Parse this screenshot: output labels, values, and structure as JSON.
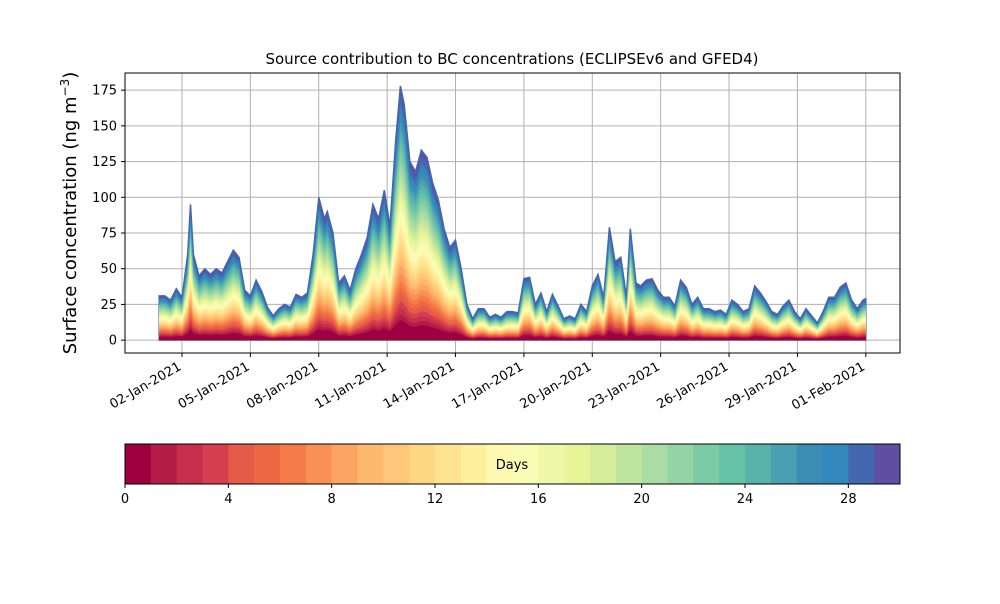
{
  "chart_data": {
    "type": "area",
    "title": "Source contribution to BC concentrations (ECLIPSEv6 and GFED4)",
    "ylabel": "Surface concentration (ng m",
    "ylabel_sup": "−3",
    "ylabel_close": ")",
    "ylim": [
      -9,
      187
    ],
    "yticks": [
      0,
      25,
      50,
      75,
      100,
      125,
      150,
      175
    ],
    "xlim": [
      "2020-12-30T12:00",
      "2021-02-02T12:00"
    ],
    "xtick_labels": [
      "02-Jan-2021",
      "05-Jan-2021",
      "08-Jan-2021",
      "11-Jan-2021",
      "14-Jan-2021",
      "17-Jan-2021",
      "20-Jan-2021",
      "23-Jan-2021",
      "26-Jan-2021",
      "29-Jan-2021",
      "01-Feb-2021"
    ],
    "xtick_dates": [
      "2021-01-02",
      "2021-01-05",
      "2021-01-08",
      "2021-01-11",
      "2021-01-14",
      "2021-01-17",
      "2021-01-20",
      "2021-01-23",
      "2021-01-26",
      "2021-01-29",
      "2021-02-01"
    ],
    "grid": true,
    "series_description": "Stacked contribution by emission age (Days 0-30)",
    "total": [
      [
        "2021-01-01T00:00",
        31
      ],
      [
        "2021-01-01T06:00",
        31
      ],
      [
        "2021-01-01T12:00",
        28
      ],
      [
        "2021-01-01T18:00",
        36
      ],
      [
        "2021-01-02T00:00",
        30
      ],
      [
        "2021-01-02T06:00",
        60
      ],
      [
        "2021-01-02T09:00",
        95
      ],
      [
        "2021-01-02T12:00",
        60
      ],
      [
        "2021-01-02T18:00",
        45
      ],
      [
        "2021-01-03T00:00",
        50
      ],
      [
        "2021-01-03T06:00",
        46
      ],
      [
        "2021-01-03T12:00",
        50
      ],
      [
        "2021-01-03T18:00",
        47
      ],
      [
        "2021-01-04T00:00",
        55
      ],
      [
        "2021-01-04T06:00",
        63
      ],
      [
        "2021-01-04T12:00",
        58
      ],
      [
        "2021-01-04T18:00",
        35
      ],
      [
        "2021-01-05T00:00",
        31
      ],
      [
        "2021-01-05T06:00",
        42
      ],
      [
        "2021-01-05T12:00",
        34
      ],
      [
        "2021-01-05T18:00",
        23
      ],
      [
        "2021-01-06T00:00",
        17
      ],
      [
        "2021-01-06T06:00",
        22
      ],
      [
        "2021-01-06T12:00",
        25
      ],
      [
        "2021-01-06T18:00",
        23
      ],
      [
        "2021-01-07T00:00",
        32
      ],
      [
        "2021-01-07T06:00",
        30
      ],
      [
        "2021-01-07T12:00",
        33
      ],
      [
        "2021-01-07T18:00",
        60
      ],
      [
        "2021-01-08T00:00",
        100
      ],
      [
        "2021-01-08T06:00",
        85
      ],
      [
        "2021-01-08T09:00",
        90
      ],
      [
        "2021-01-08T15:00",
        75
      ],
      [
        "2021-01-08T21:00",
        40
      ],
      [
        "2021-01-09T03:00",
        45
      ],
      [
        "2021-01-09T09:00",
        35
      ],
      [
        "2021-01-09T15:00",
        50
      ],
      [
        "2021-01-09T21:00",
        60
      ],
      [
        "2021-01-10T03:00",
        72
      ],
      [
        "2021-01-10T09:00",
        95
      ],
      [
        "2021-01-10T15:00",
        85
      ],
      [
        "2021-01-10T21:00",
        105
      ],
      [
        "2021-01-11T03:00",
        80
      ],
      [
        "2021-01-11T09:00",
        140
      ],
      [
        "2021-01-11T14:00",
        178
      ],
      [
        "2021-01-11T18:00",
        165
      ],
      [
        "2021-01-12T00:00",
        125
      ],
      [
        "2021-01-12T06:00",
        118
      ],
      [
        "2021-01-12T12:00",
        133
      ],
      [
        "2021-01-12T18:00",
        128
      ],
      [
        "2021-01-13T00:00",
        110
      ],
      [
        "2021-01-13T06:00",
        98
      ],
      [
        "2021-01-13T12:00",
        78
      ],
      [
        "2021-01-13T18:00",
        65
      ],
      [
        "2021-01-14T00:00",
        70
      ],
      [
        "2021-01-14T06:00",
        50
      ],
      [
        "2021-01-14T12:00",
        25
      ],
      [
        "2021-01-14T18:00",
        15
      ],
      [
        "2021-01-15T00:00",
        22
      ],
      [
        "2021-01-15T06:00",
        22
      ],
      [
        "2021-01-15T12:00",
        16
      ],
      [
        "2021-01-15T18:00",
        18
      ],
      [
        "2021-01-16T00:00",
        16
      ],
      [
        "2021-01-16T06:00",
        20
      ],
      [
        "2021-01-16T12:00",
        20
      ],
      [
        "2021-01-16T18:00",
        19
      ],
      [
        "2021-01-17T00:00",
        43
      ],
      [
        "2021-01-17T06:00",
        44
      ],
      [
        "2021-01-17T12:00",
        25
      ],
      [
        "2021-01-17T18:00",
        33
      ],
      [
        "2021-01-18T00:00",
        20
      ],
      [
        "2021-01-18T06:00",
        32
      ],
      [
        "2021-01-18T12:00",
        24
      ],
      [
        "2021-01-18T18:00",
        15
      ],
      [
        "2021-01-19T00:00",
        17
      ],
      [
        "2021-01-19T06:00",
        15
      ],
      [
        "2021-01-19T12:00",
        25
      ],
      [
        "2021-01-19T18:00",
        20
      ],
      [
        "2021-01-20T00:00",
        38
      ],
      [
        "2021-01-20T06:00",
        46
      ],
      [
        "2021-01-20T12:00",
        30
      ],
      [
        "2021-01-20T18:00",
        79
      ],
      [
        "2021-01-21T00:00",
        55
      ],
      [
        "2021-01-21T06:00",
        58
      ],
      [
        "2021-01-21T12:00",
        30
      ],
      [
        "2021-01-21T16:00",
        78
      ],
      [
        "2021-01-21T22:00",
        40
      ],
      [
        "2021-01-22T03:00",
        38
      ],
      [
        "2021-01-22T09:00",
        42
      ],
      [
        "2021-01-22T15:00",
        43
      ],
      [
        "2021-01-22T21:00",
        35
      ],
      [
        "2021-01-23T03:00",
        30
      ],
      [
        "2021-01-23T09:00",
        30
      ],
      [
        "2021-01-23T15:00",
        24
      ],
      [
        "2021-01-23T21:00",
        42
      ],
      [
        "2021-01-24T03:00",
        37
      ],
      [
        "2021-01-24T09:00",
        25
      ],
      [
        "2021-01-24T15:00",
        30
      ],
      [
        "2021-01-24T21:00",
        22
      ],
      [
        "2021-01-25T03:00",
        22
      ],
      [
        "2021-01-25T09:00",
        20
      ],
      [
        "2021-01-25T15:00",
        21
      ],
      [
        "2021-01-25T21:00",
        18
      ],
      [
        "2021-01-26T03:00",
        28
      ],
      [
        "2021-01-26T09:00",
        25
      ],
      [
        "2021-01-26T15:00",
        20
      ],
      [
        "2021-01-26T21:00",
        22
      ],
      [
        "2021-01-27T03:00",
        38
      ],
      [
        "2021-01-27T09:00",
        33
      ],
      [
        "2021-01-27T15:00",
        27
      ],
      [
        "2021-01-27T21:00",
        20
      ],
      [
        "2021-01-28T03:00",
        18
      ],
      [
        "2021-01-28T09:00",
        24
      ],
      [
        "2021-01-28T15:00",
        28
      ],
      [
        "2021-01-28T21:00",
        20
      ],
      [
        "2021-01-29T03:00",
        15
      ],
      [
        "2021-01-29T09:00",
        22
      ],
      [
        "2021-01-29T15:00",
        17
      ],
      [
        "2021-01-29T21:00",
        12
      ],
      [
        "2021-01-30T03:00",
        20
      ],
      [
        "2021-01-30T09:00",
        30
      ],
      [
        "2021-01-30T15:00",
        30
      ],
      [
        "2021-01-30T21:00",
        37
      ],
      [
        "2021-01-31T03:00",
        40
      ],
      [
        "2021-01-31T09:00",
        28
      ],
      [
        "2021-01-31T15:00",
        22
      ],
      [
        "2021-01-31T21:00",
        28
      ],
      [
        "2021-02-01T00:00",
        29
      ]
    ],
    "colorbar": {
      "label": "Days",
      "range": [
        0,
        30
      ],
      "ticks": [
        0,
        4,
        8,
        12,
        16,
        20,
        24,
        28
      ],
      "colors": [
        "#9e0142",
        "#b31c45",
        "#c62f4c",
        "#d53e4f",
        "#e45b49",
        "#ee6843",
        "#f57b48",
        "#f99155",
        "#fca462",
        "#fdb96d",
        "#fec779",
        "#fed783",
        "#fee391",
        "#feef9d",
        "#fff8b1",
        "#f9fcb4",
        "#eef8a8",
        "#e6f598",
        "#d4ed9b",
        "#bee5a0",
        "#aadca4",
        "#94d4a4",
        "#7ccba5",
        "#66c2a5",
        "#59b3aa",
        "#4aa0b1",
        "#3b8db6",
        "#3288bd",
        "#4468b0",
        "#5e4fa2"
      ]
    }
  }
}
